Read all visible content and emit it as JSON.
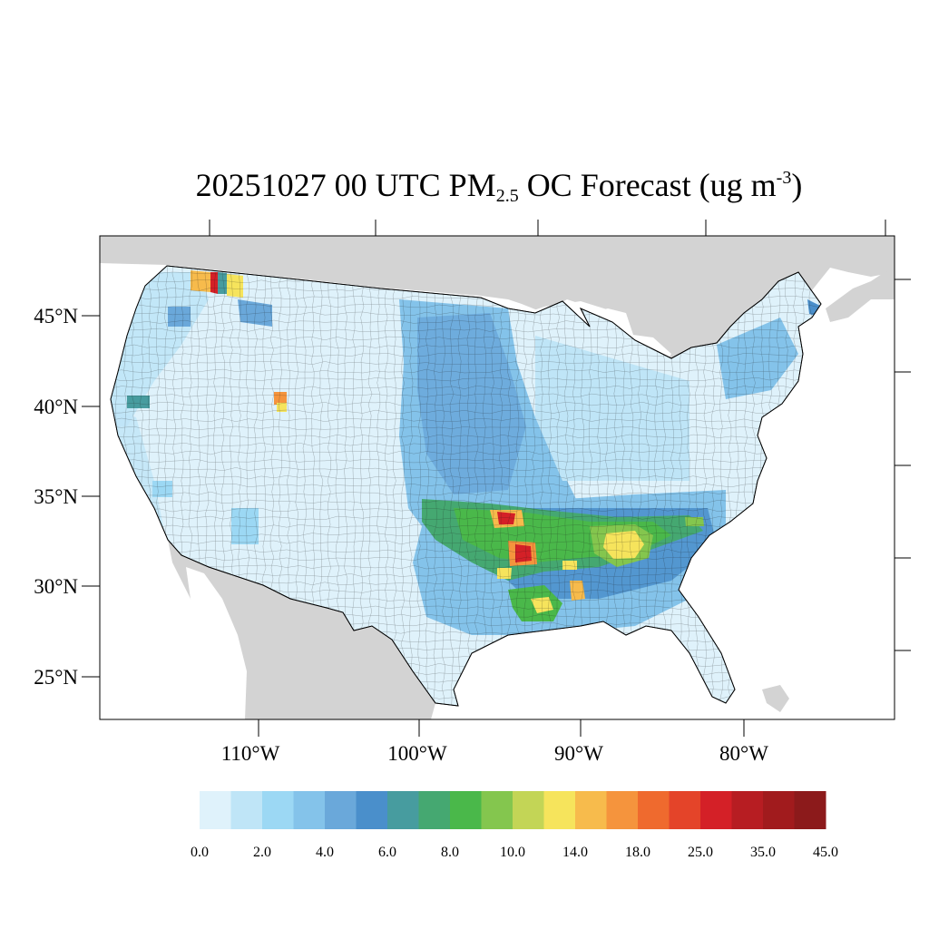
{
  "title": {
    "prefix": "20251027 00 UTC PM",
    "subscript": "2.5",
    "middle": " OC Forecast (ug m",
    "superscript": "-3",
    "suffix": ")"
  },
  "map": {
    "lat_labels": [
      "45°N",
      "40°N",
      "35°N",
      "30°N",
      "25°N"
    ],
    "lon_labels": [
      "110°W",
      "100°W",
      "90°W",
      "80°W"
    ],
    "land_color": "#d3d3d3",
    "water_color": "#ffffff"
  },
  "colorbar": {
    "colors": [
      "#dff2fb",
      "#bfe5f7",
      "#9cd8f4",
      "#84c3ea",
      "#6aa8da",
      "#4a8fcb",
      "#479c9f",
      "#45a871",
      "#4ab84a",
      "#84c64e",
      "#c3d556",
      "#f6e45c",
      "#f7bb4c",
      "#f5943d",
      "#ef6a2e",
      "#e44429",
      "#d42027",
      "#b71d22",
      "#a11b1d",
      "#8c1a1b"
    ],
    "labels": [
      "0.0",
      "2.0",
      "4.0",
      "6.0",
      "8.0",
      "10.0",
      "14.0",
      "18.0",
      "25.0",
      "35.0",
      "45.0"
    ]
  }
}
